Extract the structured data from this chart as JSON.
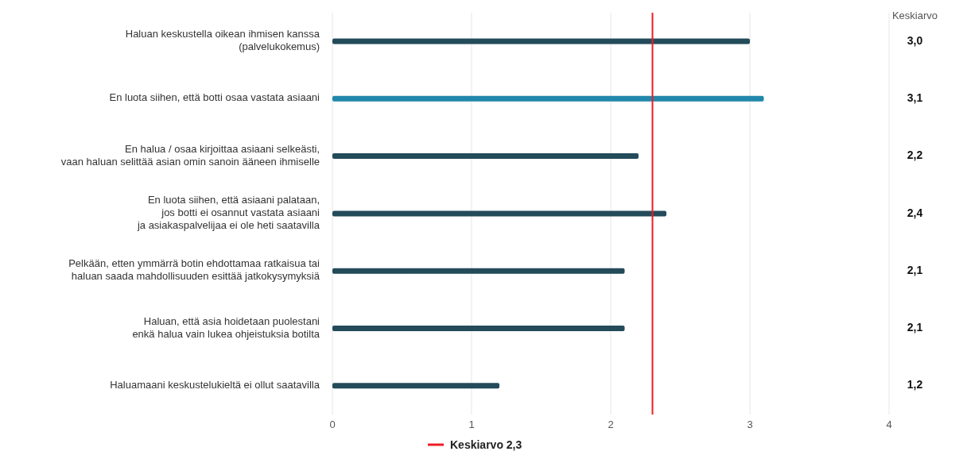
{
  "chart_data": {
    "type": "bar",
    "orientation": "horizontal",
    "categories": [
      "Haluan keskustella oikean ihmisen kanssa\n(palvelukokemus)",
      "En luota siihen, että botti osaa vastata asiaani",
      "En halua / osaa kirjoittaa asiaani selkeästi,\nvaan haluan selittää asian omin sanoin ääneen ihmiselle",
      "En luota siihen, että asiaani palataan,\njos botti ei osannut vastata asiaani\nja asiakaspalvelijaa ei ole heti saatavilla",
      "Pelkään, etten ymmärrä botin ehdottamaa ratkaisua tai\nhaluan saada mahdollisuuden esittää jatkokysymyksiä",
      "Haluan, että asia hoidetaan puolestani\nenkä halua vain lukea ohjeistuksia botilta",
      "Haluamaani keskustelukieltä ei ollut saatavilla"
    ],
    "values": [
      3.0,
      3.1,
      2.2,
      2.4,
      2.1,
      2.1,
      1.2
    ],
    "value_labels": [
      "3,0",
      "3,1",
      "2,2",
      "2,4",
      "2,1",
      "2,1",
      "1,2"
    ],
    "colors": [
      "#234b5a",
      "#2187ab",
      "#234b5a",
      "#234b5a",
      "#234b5a",
      "#234b5a",
      "#234b5a"
    ],
    "xlim": [
      0,
      4
    ],
    "xticks": [
      0,
      1,
      2,
      3,
      4
    ],
    "grid": "x",
    "ref_lines": [
      {
        "axis": "x",
        "value": 2.3,
        "label": "Keskiarvo 2,3",
        "color": "#ee1c25"
      }
    ],
    "legend": "bottom",
    "annotations": [
      "Keskiarvo"
    ]
  }
}
